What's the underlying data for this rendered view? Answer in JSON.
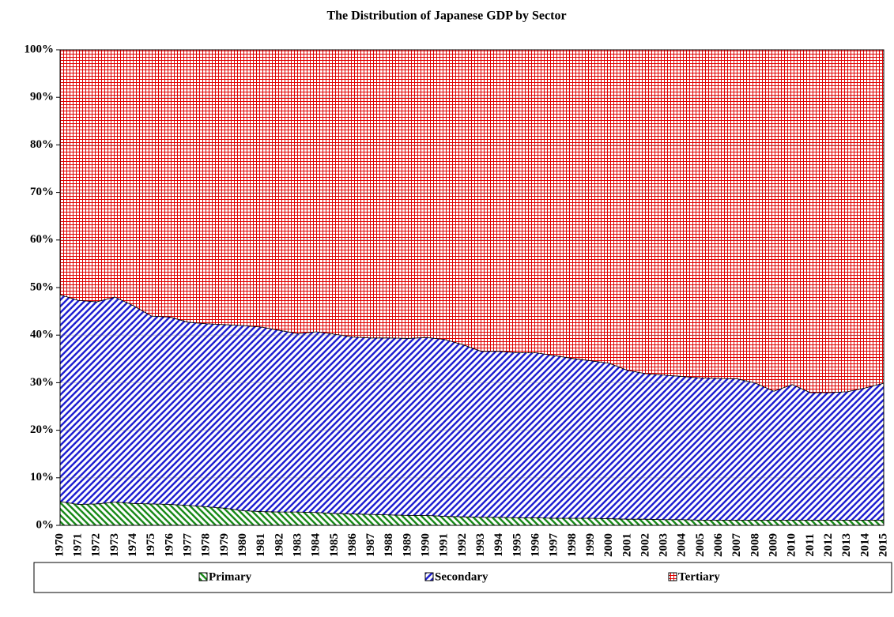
{
  "chart_data": {
    "type": "stacked_area",
    "title": "The Distribution of Japanese GDP by Sector",
    "categories": [
      "1970",
      "1971",
      "1972",
      "1973",
      "1974",
      "1975",
      "1976",
      "1977",
      "1978",
      "1979",
      "1980",
      "1981",
      "1982",
      "1983",
      "1984",
      "1985",
      "1986",
      "1987",
      "1988",
      "1989",
      "1990",
      "1991",
      "1992",
      "1993",
      "1994",
      "1995",
      "1996",
      "1997",
      "1998",
      "1999",
      "2000",
      "2001",
      "2002",
      "2003",
      "2004",
      "2005",
      "2006",
      "2007",
      "2008",
      "2009",
      "2010",
      "2011",
      "2012",
      "2013",
      "2014",
      "2015"
    ],
    "series": [
      {
        "name": "Primary",
        "color": "#1a8a1a",
        "pattern": "hatch",
        "values": [
          5.0,
          4.4,
          4.5,
          4.9,
          4.6,
          4.5,
          4.4,
          4.2,
          3.9,
          3.6,
          3.1,
          2.9,
          2.8,
          2.8,
          2.7,
          2.5,
          2.4,
          2.3,
          2.2,
          2.1,
          2.1,
          1.9,
          1.8,
          1.7,
          1.7,
          1.6,
          1.6,
          1.5,
          1.5,
          1.5,
          1.4,
          1.3,
          1.3,
          1.2,
          1.2,
          1.1,
          1.1,
          1.1,
          1.1,
          1.1,
          1.1,
          1.1,
          1.1,
          1.1,
          1.1,
          1.1
        ]
      },
      {
        "name": "Secondary",
        "color": "#1f1fd0",
        "pattern": "hatch-reverse",
        "values": [
          43.5,
          42.9,
          42.5,
          43.1,
          41.6,
          39.5,
          39.4,
          38.5,
          38.5,
          38.6,
          38.9,
          38.8,
          38.2,
          37.5,
          38.0,
          37.7,
          37.2,
          37.1,
          37.2,
          37.2,
          37.4,
          37.2,
          36.2,
          34.9,
          34.9,
          34.7,
          34.7,
          34.2,
          33.6,
          33.1,
          32.7,
          31.3,
          30.6,
          30.4,
          30.1,
          29.9,
          29.8,
          29.7,
          28.8,
          27.1,
          28.5,
          26.8,
          26.8,
          27.0,
          27.8,
          28.8
        ]
      },
      {
        "name": "Tertiary",
        "color": "#e00000",
        "pattern": "grid",
        "values": [
          51.5,
          52.7,
          53.0,
          52.0,
          53.8,
          56.0,
          56.2,
          57.3,
          57.6,
          57.8,
          58.0,
          58.3,
          59.0,
          59.7,
          59.3,
          59.8,
          60.4,
          60.6,
          60.6,
          60.7,
          60.5,
          60.9,
          62.0,
          63.4,
          63.4,
          63.7,
          63.7,
          64.3,
          64.9,
          65.4,
          65.9,
          67.4,
          68.1,
          68.4,
          68.7,
          69.0,
          69.1,
          69.2,
          70.1,
          71.8,
          70.4,
          72.1,
          72.1,
          71.9,
          71.1,
          70.1
        ]
      }
    ],
    "ylim": [
      0,
      100
    ],
    "yticks": [
      {
        "value": 0,
        "label": "0%"
      },
      {
        "value": 10,
        "label": "10%"
      },
      {
        "value": 20,
        "label": "20%"
      },
      {
        "value": 30,
        "label": "30%"
      },
      {
        "value": 40,
        "label": "40%"
      },
      {
        "value": 50,
        "label": "50%"
      },
      {
        "value": 60,
        "label": "60%"
      },
      {
        "value": 70,
        "label": "70%"
      },
      {
        "value": 80,
        "label": "80%"
      },
      {
        "value": 90,
        "label": "90%"
      },
      {
        "value": 100,
        "label": "100%"
      }
    ],
    "grid": true,
    "legend": "bottom"
  }
}
